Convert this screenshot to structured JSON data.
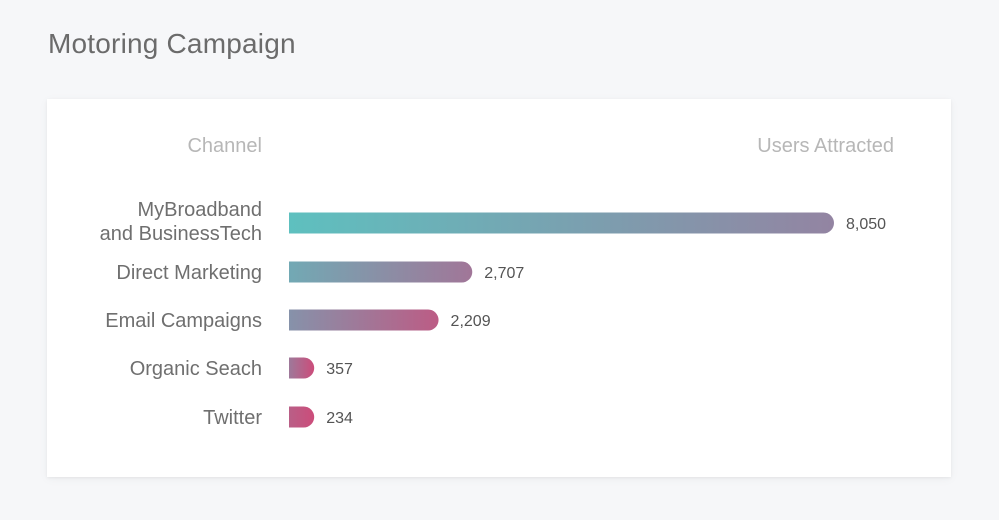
{
  "page": {
    "title": "Motoring Campaign"
  },
  "chart_data": {
    "type": "bar",
    "orientation": "horizontal",
    "column_headers": {
      "category": "Channel",
      "value": "Users Attracted"
    },
    "categories": [
      [
        "MyBroadband",
        "and BusinessTech"
      ],
      [
        "Direct Marketing"
      ],
      [
        "Email Campaigns"
      ],
      [
        "Organic Seach"
      ],
      [
        "Twitter"
      ]
    ],
    "values": [
      8050,
      2707,
      2209,
      357,
      234
    ],
    "value_labels": [
      "8,050",
      "2,707",
      "2,209",
      "357",
      "234"
    ],
    "xlim": [
      0,
      8050
    ],
    "grid": false,
    "legend": "none",
    "colors": {
      "gradient_start": "#5ec0bf",
      "gradient_mid": "#8d8aa6",
      "gradient_end": "#cc4c7a"
    }
  }
}
